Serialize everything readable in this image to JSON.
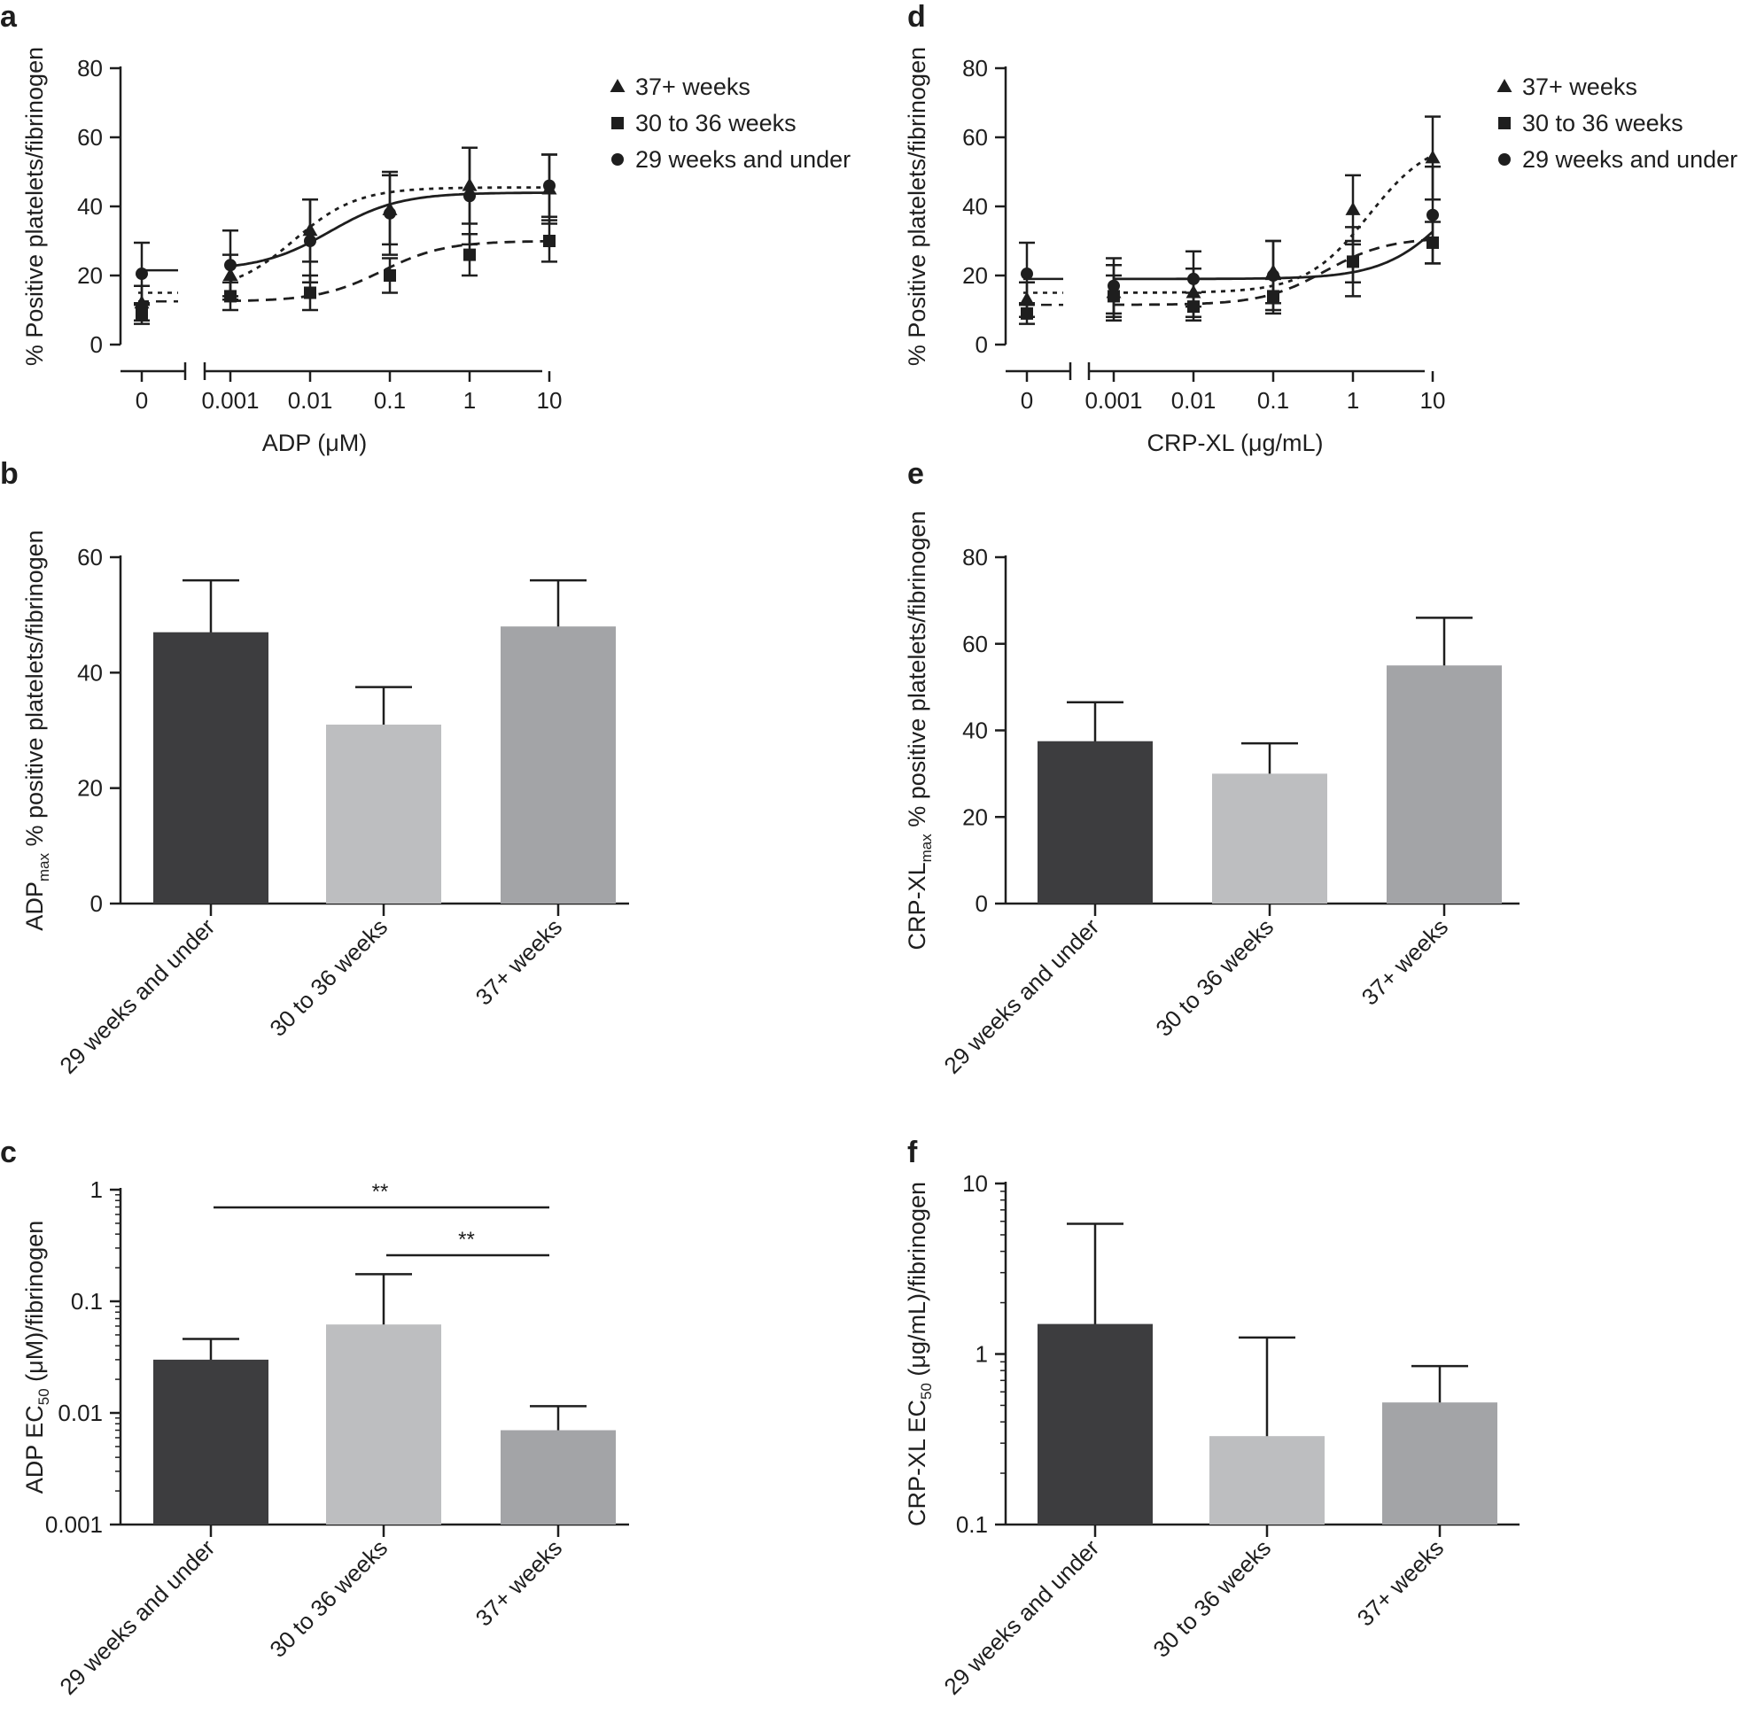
{
  "chart_data": [
    {
      "panel": "a",
      "type": "line",
      "xlabel": "ADP (μM)",
      "ylabel": "% Positive platelets/fibrinogen",
      "x_scale": "log with zero break",
      "x_ticks": [
        "0",
        "0.001",
        "0.01",
        "0.1",
        "1",
        "10"
      ],
      "x": [
        0,
        0.001,
        0.01,
        0.1,
        1,
        10
      ],
      "ylim": [
        0,
        80
      ],
      "y_ticks": [
        "0",
        "20",
        "40",
        "60",
        "80"
      ],
      "legend_position": "top-right",
      "series": [
        {
          "name": "37+ weeks",
          "marker": "triangle",
          "line": "dotted",
          "values": [
            12,
            20,
            33,
            39,
            46,
            45
          ],
          "errors": [
            5,
            6,
            9,
            10,
            11,
            10
          ],
          "fit": {
            "bottom": 15,
            "top": 45.5,
            "log_ec50": -2.2,
            "hill": 1.1
          }
        },
        {
          "name": "30 to 36 weeks",
          "marker": "square",
          "line": "dashed",
          "values": [
            9,
            14,
            15,
            20,
            26,
            30
          ],
          "errors": [
            3,
            4,
            5,
            5,
            6,
            6
          ],
          "fit": {
            "bottom": 12.5,
            "top": 30,
            "log_ec50": -1.1,
            "hill": 1.1
          }
        },
        {
          "name": "29 weeks and under",
          "marker": "circle",
          "line": "solid",
          "values": [
            20.5,
            23,
            30,
            38,
            43,
            46
          ],
          "errors": [
            9,
            10,
            12,
            12,
            14,
            9
          ],
          "fit": {
            "bottom": 21.5,
            "top": 44,
            "log_ec50": -1.75,
            "hill": 1.0
          }
        }
      ]
    },
    {
      "panel": "b",
      "type": "bar",
      "ylabel_main": "ADP",
      "ylabel_sub": "max",
      "ylabel_rest": " % positive platelets/fibrinogen",
      "categories": [
        "29 weeks and under",
        "30 to 36 weeks",
        "37+ weeks"
      ],
      "values": [
        47,
        31,
        48
      ],
      "errors": [
        9,
        6.5,
        8
      ],
      "ylim": [
        0,
        60
      ],
      "y_ticks": [
        "0",
        "20",
        "40",
        "60"
      ]
    },
    {
      "panel": "c",
      "type": "bar",
      "y_scale": "log",
      "ylabel_main": "ADP EC",
      "ylabel_sub": "50",
      "ylabel_rest": " (μM)/fibrinogen",
      "categories": [
        "29 weeks and under",
        "30 to 36 weeks",
        "37+ weeks"
      ],
      "values": [
        0.03,
        0.062,
        0.007
      ],
      "error_tops": [
        0.046,
        0.175,
        0.0115
      ],
      "ylim": [
        0.001,
        1
      ],
      "y_ticks": [
        "0.001",
        "0.01",
        "0.1",
        "1"
      ],
      "annotations": [
        {
          "text": "**",
          "from": "29 weeks and under",
          "to": "37+ weeks"
        },
        {
          "text": "**",
          "from": "30 to 36 weeks",
          "to": "37+ weeks"
        }
      ]
    },
    {
      "panel": "d",
      "type": "line",
      "xlabel": "CRP-XL (μg/mL)",
      "ylabel": "% Positive platelets/fibrinogen",
      "x_scale": "log with zero break",
      "x_ticks": [
        "0",
        "0.001",
        "0.01",
        "0.1",
        "1",
        "10"
      ],
      "x": [
        0,
        0.001,
        0.01,
        0.1,
        1,
        10
      ],
      "ylim": [
        0,
        80
      ],
      "y_ticks": [
        "0",
        "20",
        "40",
        "60",
        "80"
      ],
      "legend_position": "top-right",
      "series": [
        {
          "name": "37+ weeks",
          "marker": "triangle",
          "line": "dotted",
          "values": [
            13,
            15,
            15,
            21,
            39,
            54
          ],
          "errors": [
            5,
            8,
            7,
            9,
            10,
            12
          ],
          "fit": {
            "bottom": 15,
            "top": 60,
            "log_ec50": 0.2,
            "hill": 1.1
          }
        },
        {
          "name": "30 to 36 weeks",
          "marker": "square",
          "line": "dashed",
          "values": [
            9,
            14,
            11,
            14,
            24,
            29.5
          ],
          "errors": [
            3,
            6,
            4,
            5,
            6,
            6
          ],
          "fit": {
            "bottom": 11.5,
            "top": 31,
            "log_ec50": -0.35,
            "hill": 1.1
          }
        },
        {
          "name": "29 weeks and under",
          "marker": "circle",
          "line": "solid",
          "values": [
            20.5,
            17,
            19,
            20,
            24,
            37.5
          ],
          "errors": [
            9,
            8,
            8,
            10,
            10,
            14
          ],
          "fit": {
            "bottom": 19,
            "top": 60,
            "log_ec50": 1.3,
            "hill": 1.0
          }
        }
      ]
    },
    {
      "panel": "e",
      "type": "bar",
      "ylabel_main": "CRP-XL",
      "ylabel_sub": "max",
      "ylabel_rest": " % positive platelets/fibrinogen",
      "categories": [
        "29 weeks and under",
        "30 to 36 weeks",
        "37+ weeks"
      ],
      "values": [
        37.5,
        30,
        55
      ],
      "errors": [
        9,
        7,
        11
      ],
      "ylim": [
        0,
        80
      ],
      "y_ticks": [
        "0",
        "20",
        "40",
        "60",
        "80"
      ]
    },
    {
      "panel": "f",
      "type": "bar",
      "y_scale": "log",
      "ylabel_main": "CRP-XL EC",
      "ylabel_sub": "50",
      "ylabel_rest": " (μg/mL)/fibrinogen",
      "categories": [
        "29 weeks and under",
        "30 to 36 weeks",
        "37+ weeks"
      ],
      "values": [
        1.5,
        0.33,
        0.52
      ],
      "error_tops": [
        5.8,
        1.25,
        0.85
      ],
      "ylim": [
        0.1,
        10
      ],
      "y_ticks": [
        "0.1",
        "1",
        "10"
      ]
    }
  ],
  "colors": {
    "ink": "#1e1e1e",
    "bar_29_weeks": "#3d3d3f",
    "bar_30_36_weeks": "#bdbec0",
    "bar_37_weeks": "#a3a4a7"
  }
}
